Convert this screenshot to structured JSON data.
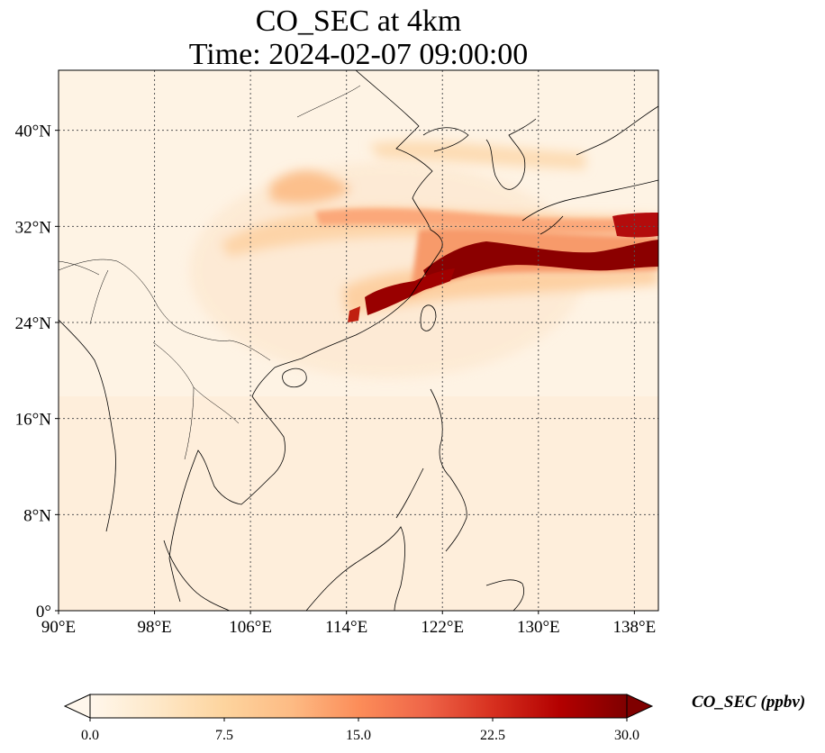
{
  "title": {
    "line1": "CO_SEC at 4km",
    "line2": "Time: 2024-02-07 09:00:00"
  },
  "map": {
    "variable": "CO_SEC",
    "level": "4km",
    "lon_range": [
      90,
      140
    ],
    "lat_range": [
      0,
      45
    ],
    "lon_ticks": [
      {
        "value": 90,
        "label": "90°E"
      },
      {
        "value": 98,
        "label": "98°E"
      },
      {
        "value": 106,
        "label": "106°E"
      },
      {
        "value": 114,
        "label": "114°E"
      },
      {
        "value": 122,
        "label": "122°E"
      },
      {
        "value": 130,
        "label": "130°E"
      },
      {
        "value": 138,
        "label": "138°E"
      }
    ],
    "lat_ticks": [
      {
        "value": 0,
        "label": "0°"
      },
      {
        "value": 8,
        "label": "8°N"
      },
      {
        "value": 16,
        "label": "16°N"
      },
      {
        "value": 24,
        "label": "24°N"
      },
      {
        "value": 32,
        "label": "32°N"
      },
      {
        "value": 40,
        "label": "40°N"
      }
    ],
    "gridlines": true,
    "gridline_style": "dotted",
    "coastline_color": "#000000"
  },
  "colorbar": {
    "label": "CO_SEC (ppbv)",
    "colormap": "OrRd",
    "range": [
      0,
      30
    ],
    "extend": "both",
    "ticks": [
      "0.0",
      "7.5",
      "15.0",
      "22.5",
      "30.0"
    ],
    "colors": [
      "#fff7ec",
      "#fee8c8",
      "#fdd49e",
      "#fdbb84",
      "#fc8d59",
      "#ef6548",
      "#d7301f",
      "#b30000",
      "#7f0000"
    ]
  }
}
